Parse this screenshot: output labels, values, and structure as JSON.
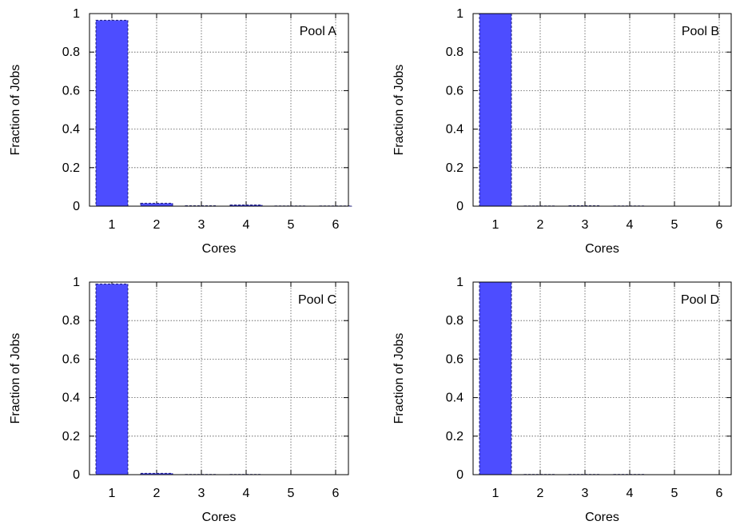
{
  "colors": {
    "bar_fill": "#4d4dff",
    "bar_edge": "#1c1c7a"
  },
  "chart_data": [
    {
      "type": "bar",
      "title": "Pool A",
      "xlabel": "Cores",
      "ylabel": "Fraction of Jobs",
      "categories": [
        "1",
        "2",
        "3",
        "4",
        "5",
        "6"
      ],
      "values": [
        0.965,
        0.015,
        0.002,
        0.006,
        0.001,
        0.001
      ],
      "yticks": [
        "0",
        "0.2",
        "0.4",
        "0.6",
        "0.8",
        "1"
      ],
      "ylim": [
        0,
        1
      ],
      "grid": true,
      "legend_position": "top-right"
    },
    {
      "type": "bar",
      "title": "Pool B",
      "xlabel": "Cores",
      "ylabel": "Fraction of Jobs",
      "categories": [
        "1",
        "2",
        "3",
        "4",
        "5",
        "6"
      ],
      "values": [
        1.0,
        0.001,
        0.002,
        0.001,
        0.0,
        0.0
      ],
      "yticks": [
        "0",
        "0.2",
        "0.4",
        "0.6",
        "0.8",
        "1"
      ],
      "ylim": [
        0,
        1
      ],
      "grid": true,
      "legend_position": "top-right"
    },
    {
      "type": "bar",
      "title": "Pool C",
      "xlabel": "Cores",
      "ylabel": "Fraction of Jobs",
      "categories": [
        "1",
        "2",
        "3",
        "4",
        "5",
        "6"
      ],
      "values": [
        0.99,
        0.007,
        0.001,
        0.001,
        0.0,
        0.0
      ],
      "yticks": [
        "0",
        "0.2",
        "0.4",
        "0.6",
        "0.8",
        "1"
      ],
      "ylim": [
        0,
        1
      ],
      "grid": true,
      "legend_position": "top-right"
    },
    {
      "type": "bar",
      "title": "Pool D",
      "xlabel": "Cores",
      "ylabel": "Fraction of Jobs",
      "categories": [
        "1",
        "2",
        "3",
        "4",
        "5",
        "6"
      ],
      "values": [
        1.0,
        0.001,
        0.001,
        0.001,
        0.0,
        0.0
      ],
      "yticks": [
        "0",
        "0.2",
        "0.4",
        "0.6",
        "0.8",
        "1"
      ],
      "ylim": [
        0,
        1
      ],
      "grid": true,
      "legend_position": "top-right"
    }
  ]
}
